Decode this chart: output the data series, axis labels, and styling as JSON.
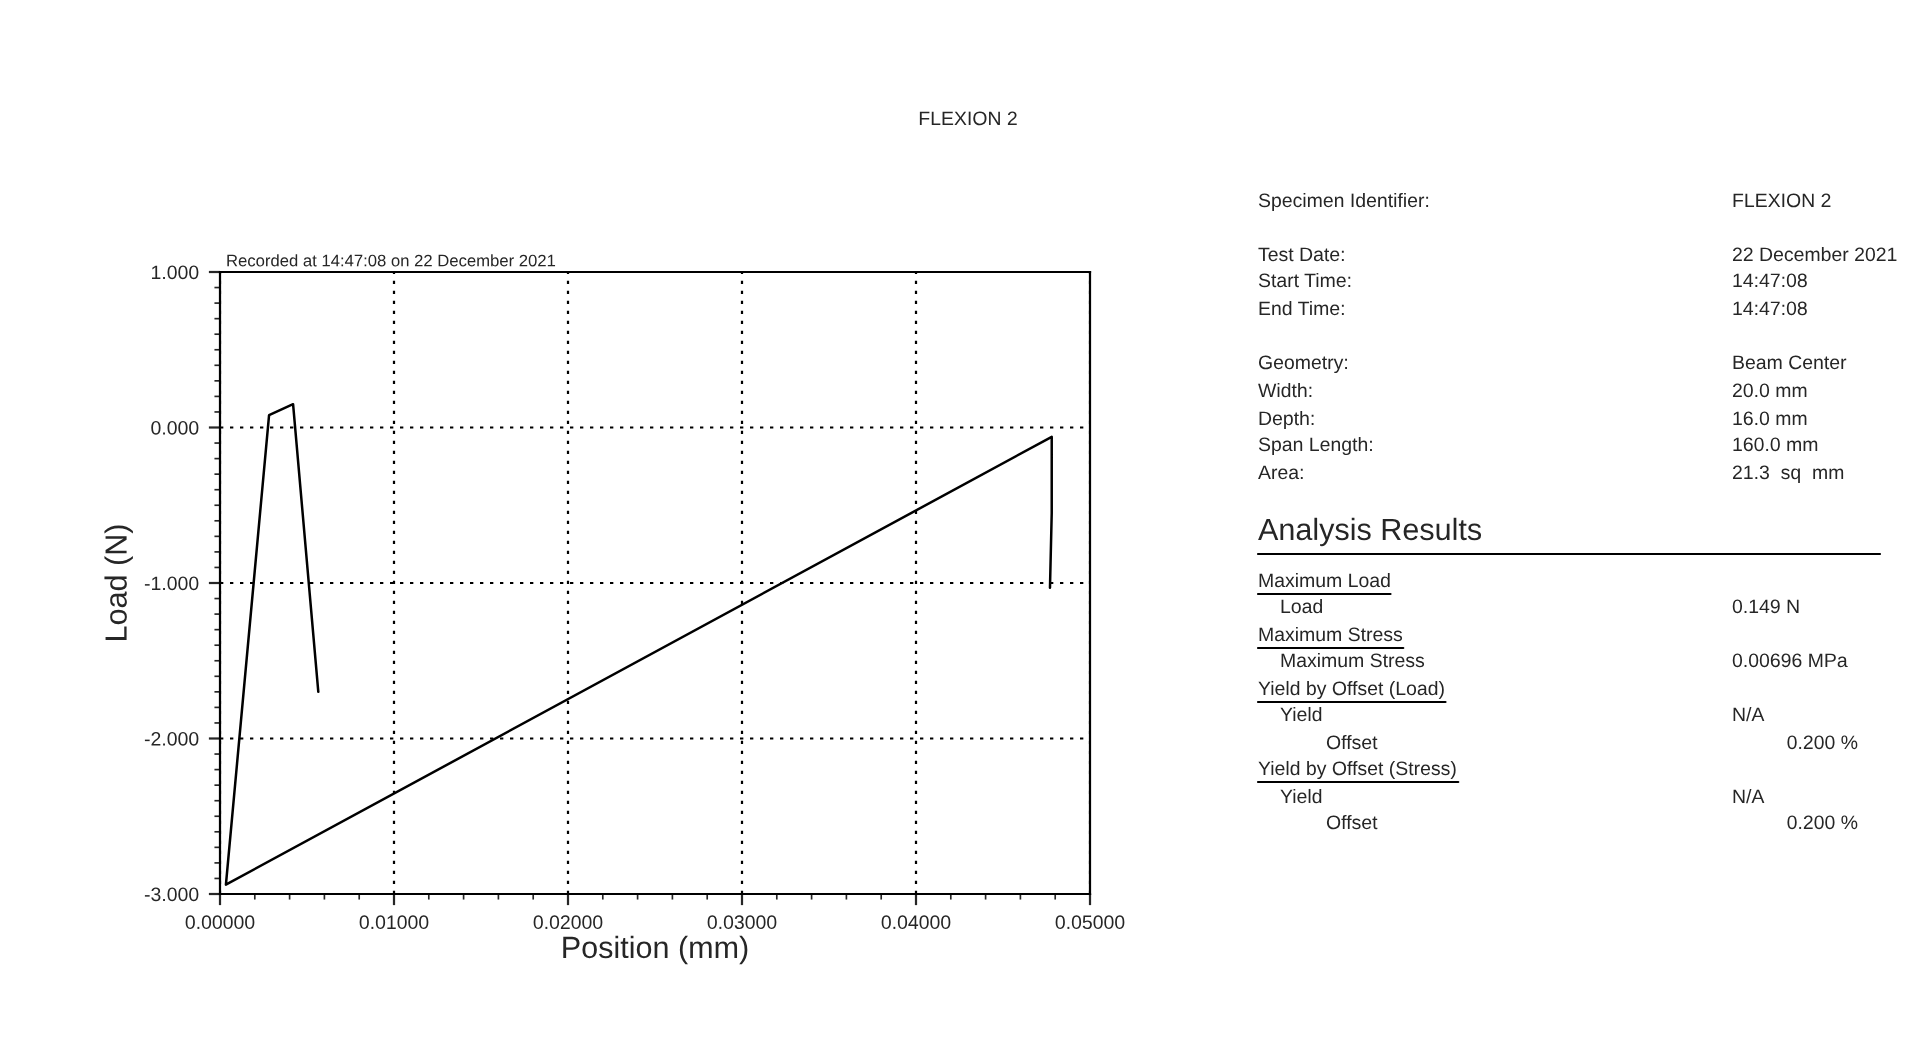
{
  "chart_data": {
    "type": "line",
    "title": "FLEXION 2",
    "xlabel": "Position (mm)",
    "ylabel": "Load (N)",
    "x": [
      0.00565,
      0.0042,
      0.00282,
      0.00034,
      0.0478,
      0.0478,
      0.0477
    ],
    "series": [
      {
        "color": "#000000",
        "values": [
          -1.7,
          0.15,
          0.08,
          -2.94,
          -0.06,
          -0.55,
          -1.03
        ]
      }
    ],
    "xlim": [
      0,
      0.05
    ],
    "ylim": [
      -3,
      1
    ],
    "xticks": [
      {
        "value": 0,
        "label": "0.00000"
      },
      {
        "value": 0.01,
        "label": "0.01000"
      },
      {
        "value": 0.02,
        "label": "0.02000"
      },
      {
        "value": 0.03,
        "label": "0.03000"
      },
      {
        "value": 0.04,
        "label": "0.04000"
      },
      {
        "value": 0.05,
        "label": "0.05000"
      }
    ],
    "yticks": [
      {
        "value": -3,
        "label": "-3.000"
      },
      {
        "value": -2,
        "label": "-2.000"
      },
      {
        "value": -1,
        "label": "-1.000"
      },
      {
        "value": 0,
        "label": "0.000"
      },
      {
        "value": 1,
        "label": "1.000"
      }
    ],
    "grid": true,
    "line_style": "solid",
    "marker": "none",
    "legend": false,
    "annotations": [
      "Recorded at 14:47:08 on 22 December 2021",
      "Specimen Identifier:",
      "FLEXION 2",
      "Test Date:",
      "22 December 2021",
      "Start Time:",
      "14:47:08",
      "End Time:",
      "14:47:08",
      "Geometry:",
      "Beam Center",
      "Width:",
      "20.0 mm",
      "Depth:",
      "16.0 mm",
      "Span Length:",
      "160.0 mm",
      "Area:",
      "21.3  sq  mm",
      "Analysis Results",
      "Maximum Load",
      "Load",
      "0.149 N",
      "Maximum Stress",
      "Maximum Stress",
      "0.00696 MPa",
      "Yield by Offset (Load)",
      "Yield",
      "N/A",
      "Offset",
      "0.200 %",
      "Yield by Offset (Stress)",
      "Yield",
      "N/A",
      "Offset",
      "0.200 %"
    ]
  }
}
